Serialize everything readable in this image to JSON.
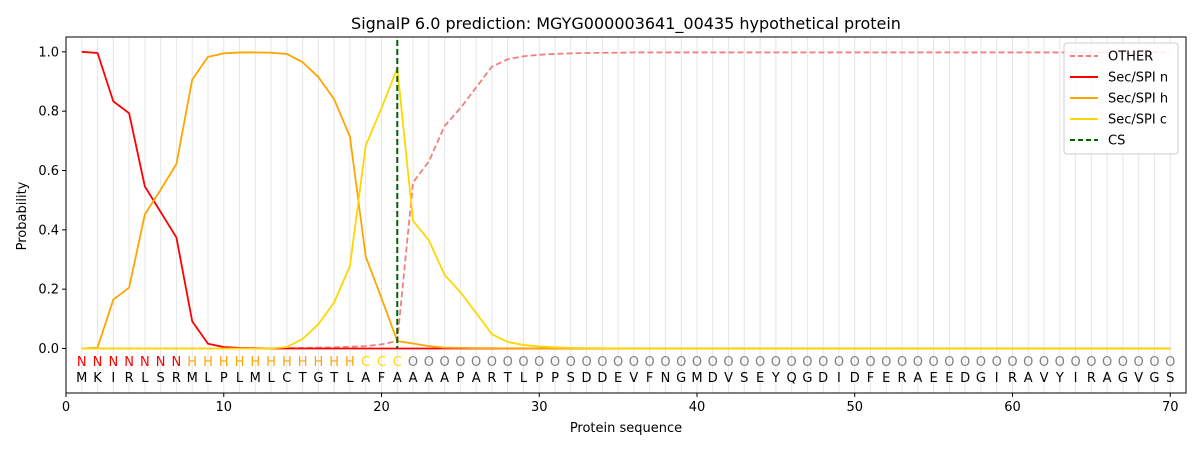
{
  "chart_data": {
    "type": "line",
    "title": "SignalP 6.0 prediction: MGYG000003641_00435 hypothetical protein",
    "xlabel": "Protein sequence",
    "ylabel": "Probability",
    "xlim": [
      0,
      71
    ],
    "ylim": [
      -0.15,
      1.05
    ],
    "xticks": [
      0,
      10,
      20,
      30,
      40,
      50,
      60,
      70
    ],
    "yticks": [
      0.0,
      0.2,
      0.4,
      0.6,
      0.8,
      1.0
    ],
    "grid": "vertical lines at each residue position",
    "legend_position": "top-right",
    "sequence": [
      "M",
      "K",
      "I",
      "R",
      "L",
      "S",
      "R",
      "M",
      "L",
      "P",
      "L",
      "M",
      "L",
      "C",
      "T",
      "G",
      "T",
      "L",
      "A",
      "F",
      "A",
      "A",
      "A",
      "A",
      "P",
      "A",
      "R",
      "T",
      "L",
      "P",
      "P",
      "S",
      "D",
      "D",
      "E",
      "V",
      "F",
      "N",
      "G",
      "M",
      "D",
      "V",
      "S",
      "E",
      "Y",
      "Q",
      "G",
      "D",
      "I",
      "D",
      "F",
      "E",
      "R",
      "A",
      "E",
      "E",
      "D",
      "G",
      "I",
      "R",
      "A",
      "V",
      "Y",
      "I",
      "R",
      "A",
      "G",
      "V",
      "G",
      "S"
    ],
    "region_labels": [
      "N",
      "N",
      "N",
      "N",
      "N",
      "N",
      "N",
      "H",
      "H",
      "H",
      "H",
      "H",
      "H",
      "H",
      "H",
      "H",
      "H",
      "H",
      "C",
      "C",
      "C",
      "O",
      "O",
      "O",
      "O",
      "O",
      "O",
      "O",
      "O",
      "O",
      "O",
      "O",
      "O",
      "O",
      "O",
      "O",
      "O",
      "O",
      "O",
      "O",
      "O",
      "O",
      "O",
      "O",
      "O",
      "O",
      "O",
      "O",
      "O",
      "O",
      "O",
      "O",
      "O",
      "O",
      "O",
      "O",
      "O",
      "O",
      "O",
      "O",
      "O",
      "O",
      "O",
      "O",
      "O",
      "O",
      "O",
      "O",
      "O",
      "O"
    ],
    "region_colors": {
      "N": "#ff0000",
      "H": "#ffa500",
      "C": "#ffd700",
      "O": "#808080"
    },
    "cleavage_site": 21,
    "series": [
      {
        "name": "OTHER",
        "color": "#f08080",
        "dash": "dashed",
        "values": [
          0,
          0,
          0,
          0,
          0,
          0,
          0,
          0,
          0,
          0,
          0,
          0,
          0,
          0.001,
          0.002,
          0.003,
          0.004,
          0.006,
          0.008,
          0.014,
          0.025,
          0.56,
          0.63,
          0.75,
          0.81,
          0.88,
          0.95,
          0.975,
          0.985,
          0.99,
          0.993,
          0.995,
          0.996,
          0.997,
          0.997,
          0.998,
          0.998,
          0.998,
          0.998,
          0.998,
          0.998,
          0.998,
          0.998,
          0.998,
          0.998,
          0.998,
          0.998,
          0.998,
          0.998,
          0.998,
          0.998,
          0.998,
          0.998,
          0.998,
          0.998,
          0.998,
          0.998,
          0.998,
          0.998,
          0.998,
          0.998,
          0.998,
          0.998,
          0.998,
          0.998,
          0.998,
          0.998,
          0.998,
          0.998,
          0.998
        ]
      },
      {
        "name": "Sec/SPI n",
        "color": "#ff0000",
        "dash": "solid",
        "values": [
          1.0,
          0.996,
          0.833,
          0.793,
          0.546,
          0.46,
          0.374,
          0.092,
          0.016,
          0.005,
          0.002,
          0.001,
          0,
          0,
          0,
          0,
          0,
          0,
          0,
          0,
          0,
          0,
          0,
          0,
          0,
          0,
          0,
          0,
          0,
          0,
          0,
          0,
          0,
          0,
          0,
          0,
          0,
          0,
          0,
          0,
          0,
          0,
          0,
          0,
          0,
          0,
          0,
          0,
          0,
          0,
          0,
          0,
          0,
          0,
          0,
          0,
          0,
          0,
          0,
          0,
          0,
          0,
          0,
          0,
          0,
          0,
          0,
          0,
          0,
          0
        ]
      },
      {
        "name": "Sec/SPI h",
        "color": "#ffa500",
        "dash": "solid",
        "values": [
          0,
          0.003,
          0.165,
          0.205,
          0.452,
          0.535,
          0.622,
          0.906,
          0.983,
          0.995,
          0.998,
          0.998,
          0.997,
          0.993,
          0.965,
          0.915,
          0.84,
          0.714,
          0.31,
          0.17,
          0.025,
          0.017,
          0.008,
          0.003,
          0.002,
          0.001,
          0.001,
          0,
          0,
          0,
          0,
          0,
          0,
          0,
          0,
          0,
          0,
          0,
          0,
          0,
          0,
          0,
          0,
          0,
          0,
          0,
          0,
          0,
          0,
          0,
          0,
          0,
          0,
          0,
          0,
          0,
          0,
          0,
          0,
          0,
          0,
          0,
          0,
          0,
          0,
          0,
          0,
          0,
          0,
          0
        ]
      },
      {
        "name": "Sec/SPI c",
        "color": "#ffd700",
        "dash": "solid",
        "values": [
          0,
          0,
          0,
          0,
          0,
          0,
          0,
          0,
          0,
          0,
          0,
          0,
          0,
          0.005,
          0.032,
          0.082,
          0.155,
          0.278,
          0.684,
          0.81,
          0.945,
          0.43,
          0.365,
          0.248,
          0.19,
          0.12,
          0.048,
          0.022,
          0.012,
          0.007,
          0.004,
          0.002,
          0.001,
          0.001,
          0,
          0,
          0,
          0,
          0,
          0,
          0,
          0,
          0,
          0,
          0,
          0,
          0,
          0,
          0,
          0,
          0,
          0,
          0,
          0,
          0,
          0,
          0,
          0,
          0,
          0,
          0,
          0,
          0,
          0,
          0,
          0,
          0,
          0,
          0,
          0
        ]
      },
      {
        "name": "CS",
        "color": "#006400",
        "dash": "dashed",
        "vline": 21
      }
    ]
  }
}
